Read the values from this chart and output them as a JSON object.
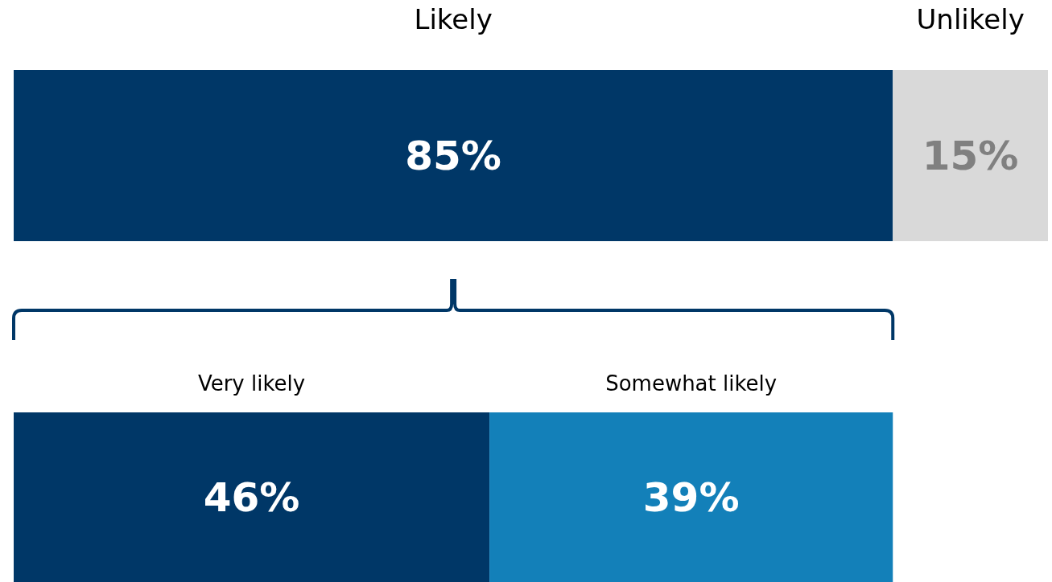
{
  "chart_data": [
    {
      "type": "bar",
      "orientation": "horizontal",
      "stacked": true,
      "categories": [
        null
      ],
      "xlim": [
        0,
        100
      ],
      "series": [
        {
          "name": "Likely",
          "color": "#003767",
          "values": [
            85
          ],
          "value_labels": [
            "85%"
          ]
        },
        {
          "name": "Unlikely",
          "color": "#d9d9d9",
          "values": [
            15
          ],
          "value_labels": [
            "15%"
          ]
        }
      ]
    },
    {
      "type": "bar",
      "orientation": "horizontal",
      "stacked": true,
      "categories": [
        null
      ],
      "xlim": [
        0,
        100
      ],
      "series": [
        {
          "name": "Very likely",
          "color": "#003767",
          "values": [
            46
          ],
          "value_labels": [
            "46%"
          ]
        },
        {
          "name": "Somewhat likely",
          "color": "#1380b9",
          "values": [
            39
          ],
          "value_labels": [
            "39%"
          ]
        }
      ]
    }
  ]
}
